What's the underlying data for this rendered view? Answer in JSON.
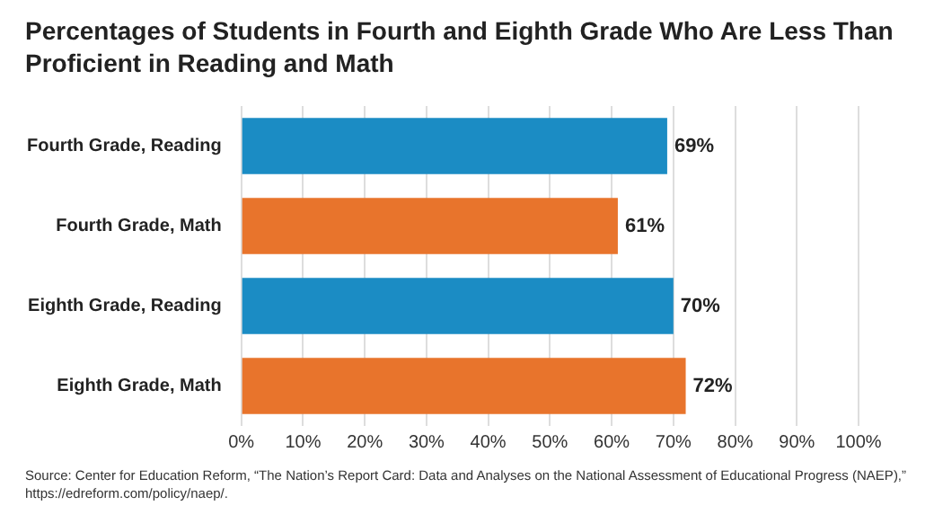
{
  "chart_data": {
    "type": "bar",
    "orientation": "horizontal",
    "title": "Percentages of Students in Fourth and Eighth Grade Who Are Less Than Proficient in Reading and Math",
    "categories": [
      "Fourth Grade, Reading",
      "Fourth Grade, Math",
      "Eighth Grade, Reading",
      "Eighth Grade, Math"
    ],
    "values": [
      69,
      61,
      70,
      72
    ],
    "colors": [
      "#1b8cc4",
      "#e8742c",
      "#1b8cc4",
      "#e8742c"
    ],
    "value_labels": [
      "69%",
      "61%",
      "70%",
      "72%"
    ],
    "xlim": [
      0,
      100
    ],
    "xticks": [
      {
        "value": 0,
        "label": "0%"
      },
      {
        "value": 10,
        "label": "10%"
      },
      {
        "value": 20,
        "label": "20%"
      },
      {
        "value": 30,
        "label": "30%"
      },
      {
        "value": 40,
        "label": "40%"
      },
      {
        "value": 50,
        "label": "50%"
      },
      {
        "value": 60,
        "label": "60%"
      },
      {
        "value": 70,
        "label": "70%"
      },
      {
        "value": 80,
        "label": "80%"
      },
      {
        "value": 90,
        "label": "90%"
      },
      {
        "value": 100,
        "label": "100%"
      }
    ],
    "grid": "x",
    "legend": false,
    "annotations": [
      "Source: Center for Education Reform, “The Nation’s Report Card: Data and Analyses on the National Assessment of Educational Progress (NAEP),” https://edreform.com/policy/naep/."
    ]
  }
}
